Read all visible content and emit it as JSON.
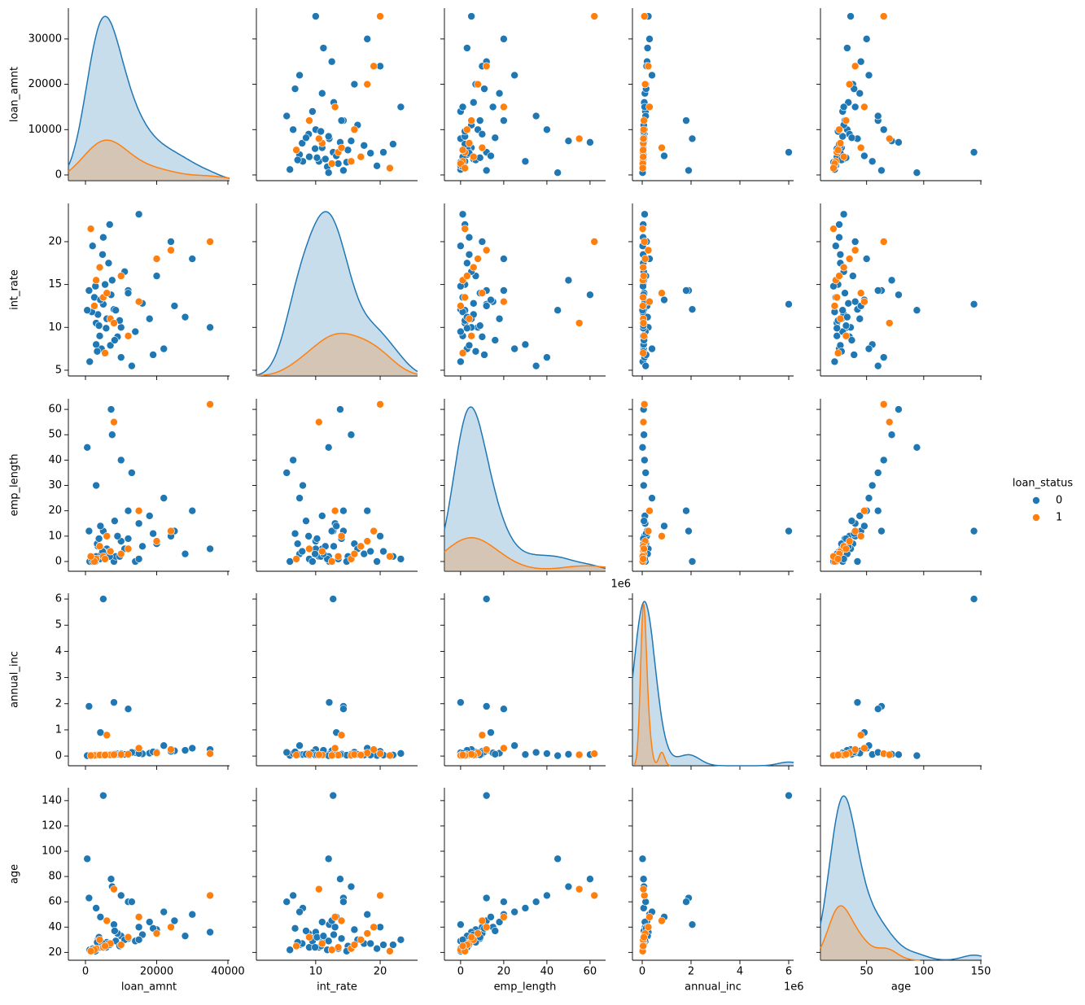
{
  "chart_data": {
    "type": "pairplot",
    "variables": [
      {
        "name": "loan_amnt",
        "xlim": [
          -4800,
          40460
        ],
        "xticks": [
          0,
          20000,
          40000
        ],
        "ylim": [
          -1260,
          36800
        ],
        "yticks": [
          0,
          10000,
          20000,
          30000
        ]
      },
      {
        "name": "int_rate",
        "xlim": [
          0.8,
          25.8
        ],
        "xticks": [
          10,
          20
        ],
        "ylim": [
          4.33,
          24.46
        ],
        "yticks": [
          5,
          10,
          15,
          20
        ]
      },
      {
        "name": "emp_length",
        "xlim": [
          -7.5,
          67.2
        ],
        "xticks": [
          0,
          20,
          40,
          60
        ],
        "ylim": [
          -3.85,
          64.2
        ],
        "yticks": [
          0,
          10,
          20,
          30,
          40,
          50,
          60
        ]
      },
      {
        "name": "annual_inc",
        "offset_label": "1e6",
        "xlim": [
          -400000,
          6200000
        ],
        "xticks": [
          0,
          {
            "value": 2000000,
            "label": "2"
          },
          {
            "value": 4000000,
            "label": "4"
          },
          {
            "value": 6000000,
            "label": "6"
          }
        ],
        "ylim": [
          -370000,
          6220000
        ],
        "yticks": [
          0,
          {
            "value": 1000000,
            "label": "1"
          },
          {
            "value": 2000000,
            "label": "2"
          },
          {
            "value": 3000000,
            "label": "3"
          },
          {
            "value": 4000000,
            "label": "4"
          },
          {
            "value": 5000000,
            "label": "5"
          },
          {
            "value": 6000000,
            "label": "6"
          }
        ]
      },
      {
        "name": "age",
        "xlim": [
          9.6,
          150.7
        ],
        "xticks": [
          50,
          100,
          150
        ],
        "ylim": [
          13.8,
          150.2
        ],
        "yticks": [
          20,
          40,
          60,
          80,
          100,
          120,
          140
        ]
      }
    ],
    "legend": {
      "title": "loan_status",
      "position": "right"
    },
    "series": [
      {
        "name": "0",
        "color": "#1f77b4",
        "values": [
          [
            5000,
            12.7,
            12,
            6000000,
            144
          ],
          [
            8000,
            12.1,
            0,
            2050000,
            42
          ],
          [
            1000,
            14.3,
            12,
            1900000,
            63
          ],
          [
            12000,
            14.3,
            20,
            1800000,
            60
          ],
          [
            3000,
            10.5,
            2,
            45000,
            24
          ],
          [
            4500,
            7.5,
            3,
            60000,
            26
          ],
          [
            6000,
            11.0,
            5,
            52000,
            28
          ],
          [
            2500,
            13.5,
            1,
            30000,
            23
          ],
          [
            10000,
            10.0,
            8,
            75000,
            33
          ],
          [
            7000,
            7.9,
            4,
            48000,
            27
          ],
          [
            5500,
            15.0,
            2,
            40000,
            25
          ],
          [
            3500,
            11.5,
            6,
            55000,
            30
          ],
          [
            9000,
            8.9,
            10,
            90000,
            35
          ],
          [
            15000,
            13.0,
            15,
            120000,
            40
          ],
          [
            20000,
            16.0,
            7,
            150000,
            38
          ],
          [
            25000,
            12.5,
            12,
            200000,
            45
          ],
          [
            35000,
            10.0,
            5,
            250000,
            36
          ],
          [
            1200,
            6.0,
            0,
            25000,
            22
          ],
          [
            4000,
            9.0,
            1,
            35000,
            24
          ],
          [
            6500,
            17.5,
            3,
            42000,
            27
          ],
          [
            8500,
            12.0,
            2,
            65000,
            29
          ],
          [
            12000,
            14.0,
            9,
            80000,
            31
          ],
          [
            18000,
            11.0,
            18,
            110000,
            44
          ],
          [
            30000,
            18.0,
            20,
            300000,
            50
          ],
          [
            2000,
            19.5,
            0,
            20000,
            23
          ],
          [
            5000,
            20.5,
            4,
            38000,
            26
          ],
          [
            3000,
            8.0,
            30,
            60000,
            55
          ],
          [
            10000,
            6.5,
            40,
            95000,
            65
          ],
          [
            7500,
            15.5,
            50,
            70000,
            72
          ],
          [
            14000,
            9.5,
            0,
            130000,
            29
          ],
          [
            16000,
            12.8,
            6,
            85000,
            34
          ],
          [
            22000,
            7.5,
            25,
            400000,
            52
          ],
          [
            4200,
            13.2,
            14,
            900000,
            48
          ],
          [
            9600,
            10.8,
            2,
            58000,
            25
          ],
          [
            1800,
            11.8,
            1,
            28000,
            22
          ],
          [
            5800,
            9.9,
            3,
            46000,
            24
          ],
          [
            11000,
            16.5,
            5,
            62000,
            30
          ],
          [
            3300,
            7.2,
            7,
            50000,
            28
          ],
          [
            24000,
            20.0,
            10,
            180000,
            40
          ],
          [
            6800,
            22.0,
            2,
            41000,
            26
          ],
          [
            13000,
            5.5,
            35,
            140000,
            60
          ],
          [
            2800,
            14.8,
            0,
            33000,
            21
          ],
          [
            8200,
            8.5,
            16,
            72000,
            37
          ],
          [
            4800,
            18.5,
            4,
            39000,
            27
          ],
          [
            19000,
            6.8,
            11,
            160000,
            39
          ],
          [
            7200,
            13.8,
            60,
            55000,
            78
          ],
          [
            3800,
            10.2,
            9,
            47000,
            32
          ],
          [
            28000,
            11.2,
            3,
            220000,
            33
          ],
          [
            15000,
            23.2,
            1,
            100000,
            30
          ],
          [
            500,
            12.0,
            45,
            15000,
            94
          ]
        ]
      },
      {
        "name": "1",
        "color": "#ff7f0e",
        "values": [
          [
            5000,
            13.5,
            2,
            35000,
            24
          ],
          [
            3000,
            15.5,
            1,
            28000,
            23
          ],
          [
            7000,
            11.0,
            4,
            45000,
            27
          ],
          [
            10000,
            16.0,
            3,
            60000,
            26
          ],
          [
            2500,
            12.5,
            0,
            25000,
            22
          ],
          [
            20000,
            18.0,
            8,
            120000,
            35
          ],
          [
            35000,
            20.0,
            62,
            90000,
            65
          ],
          [
            6000,
            14.0,
            10,
            800000,
            45
          ],
          [
            4000,
            17.0,
            6,
            40000,
            30
          ],
          [
            12000,
            9.0,
            5,
            70000,
            32
          ],
          [
            1500,
            21.5,
            2,
            20000,
            21
          ],
          [
            8000,
            10.5,
            55,
            50000,
            70
          ],
          [
            15000,
            13.0,
            20,
            300000,
            48
          ],
          [
            24000,
            19.0,
            12,
            250000,
            40
          ],
          [
            5500,
            7.0,
            1,
            38000,
            25
          ]
        ]
      }
    ]
  }
}
